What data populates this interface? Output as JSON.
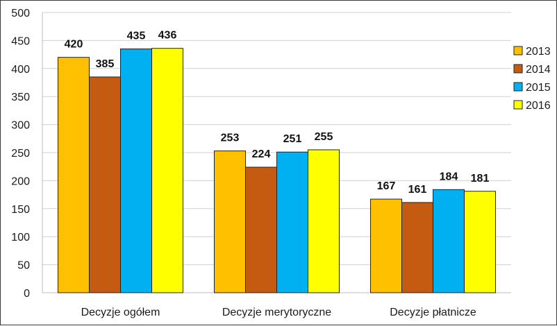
{
  "chart_data": {
    "type": "bar",
    "categories": [
      "Decyzje ogółem",
      "Decyzje merytoryczne",
      "Decyzje płatnicze"
    ],
    "series": [
      {
        "name": "2013",
        "color": "#FFC000",
        "values": [
          420,
          253,
          167
        ]
      },
      {
        "name": "2014",
        "color": "#C55A11",
        "values": [
          385,
          224,
          161
        ]
      },
      {
        "name": "2015",
        "color": "#00B0F0",
        "values": [
          435,
          251,
          184
        ]
      },
      {
        "name": "2016",
        "color": "#FFFF00",
        "values": [
          436,
          255,
          181
        ]
      }
    ],
    "yticks": [
      0,
      50,
      100,
      150,
      200,
      250,
      300,
      350,
      400,
      450,
      500
    ],
    "ylim": [
      0,
      500
    ],
    "grid": true,
    "legend_position": "right",
    "data_labels": true,
    "title": "",
    "xlabel": "",
    "ylabel": ""
  }
}
